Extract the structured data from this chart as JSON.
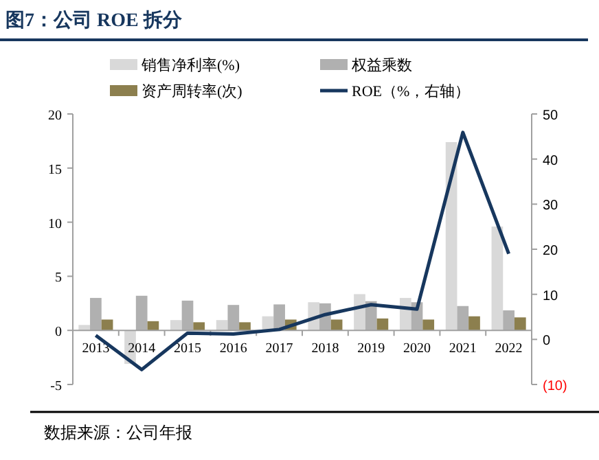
{
  "chart_data": {
    "type": "bar",
    "title": "图7：公司 ROE 拆分",
    "categories": [
      "2013",
      "2014",
      "2015",
      "2016",
      "2017",
      "2018",
      "2019",
      "2020",
      "2021",
      "2022"
    ],
    "series": [
      {
        "name": "销售净利率(%)",
        "color": "#d9d9d9",
        "values": [
          0.5,
          -3.1,
          0.95,
          0.95,
          1.3,
          2.6,
          3.35,
          3.0,
          17.4,
          9.6
        ]
      },
      {
        "name": "权益乘数",
        "color": "#b0b0b0",
        "values": [
          3.0,
          3.2,
          2.75,
          2.35,
          2.4,
          2.5,
          2.7,
          2.6,
          2.25,
          1.85
        ]
      },
      {
        "name": "资产周转率(次)",
        "color": "#8c7f4e",
        "values": [
          1.0,
          0.85,
          0.75,
          0.75,
          1.0,
          1.0,
          1.1,
          1.0,
          1.3,
          1.2
        ]
      },
      {
        "name": "ROE（%，右轴）",
        "type": "line",
        "axis": "y2",
        "color": "#17375e",
        "values": [
          0.9,
          -6.7,
          1.4,
          1.2,
          2.2,
          5.5,
          7.7,
          6.7,
          45.9,
          19.0
        ]
      }
    ],
    "ylim": [
      -5,
      20
    ],
    "yticks": [
      -5,
      0,
      5,
      10,
      15,
      20
    ],
    "y2lim": [
      -10,
      50
    ],
    "y2ticks": [
      {
        "value": -10,
        "label": "(10)"
      },
      0,
      10,
      20,
      30,
      40,
      50
    ],
    "legend": "top",
    "annotations": [
      "数据来源：公司年报"
    ]
  }
}
